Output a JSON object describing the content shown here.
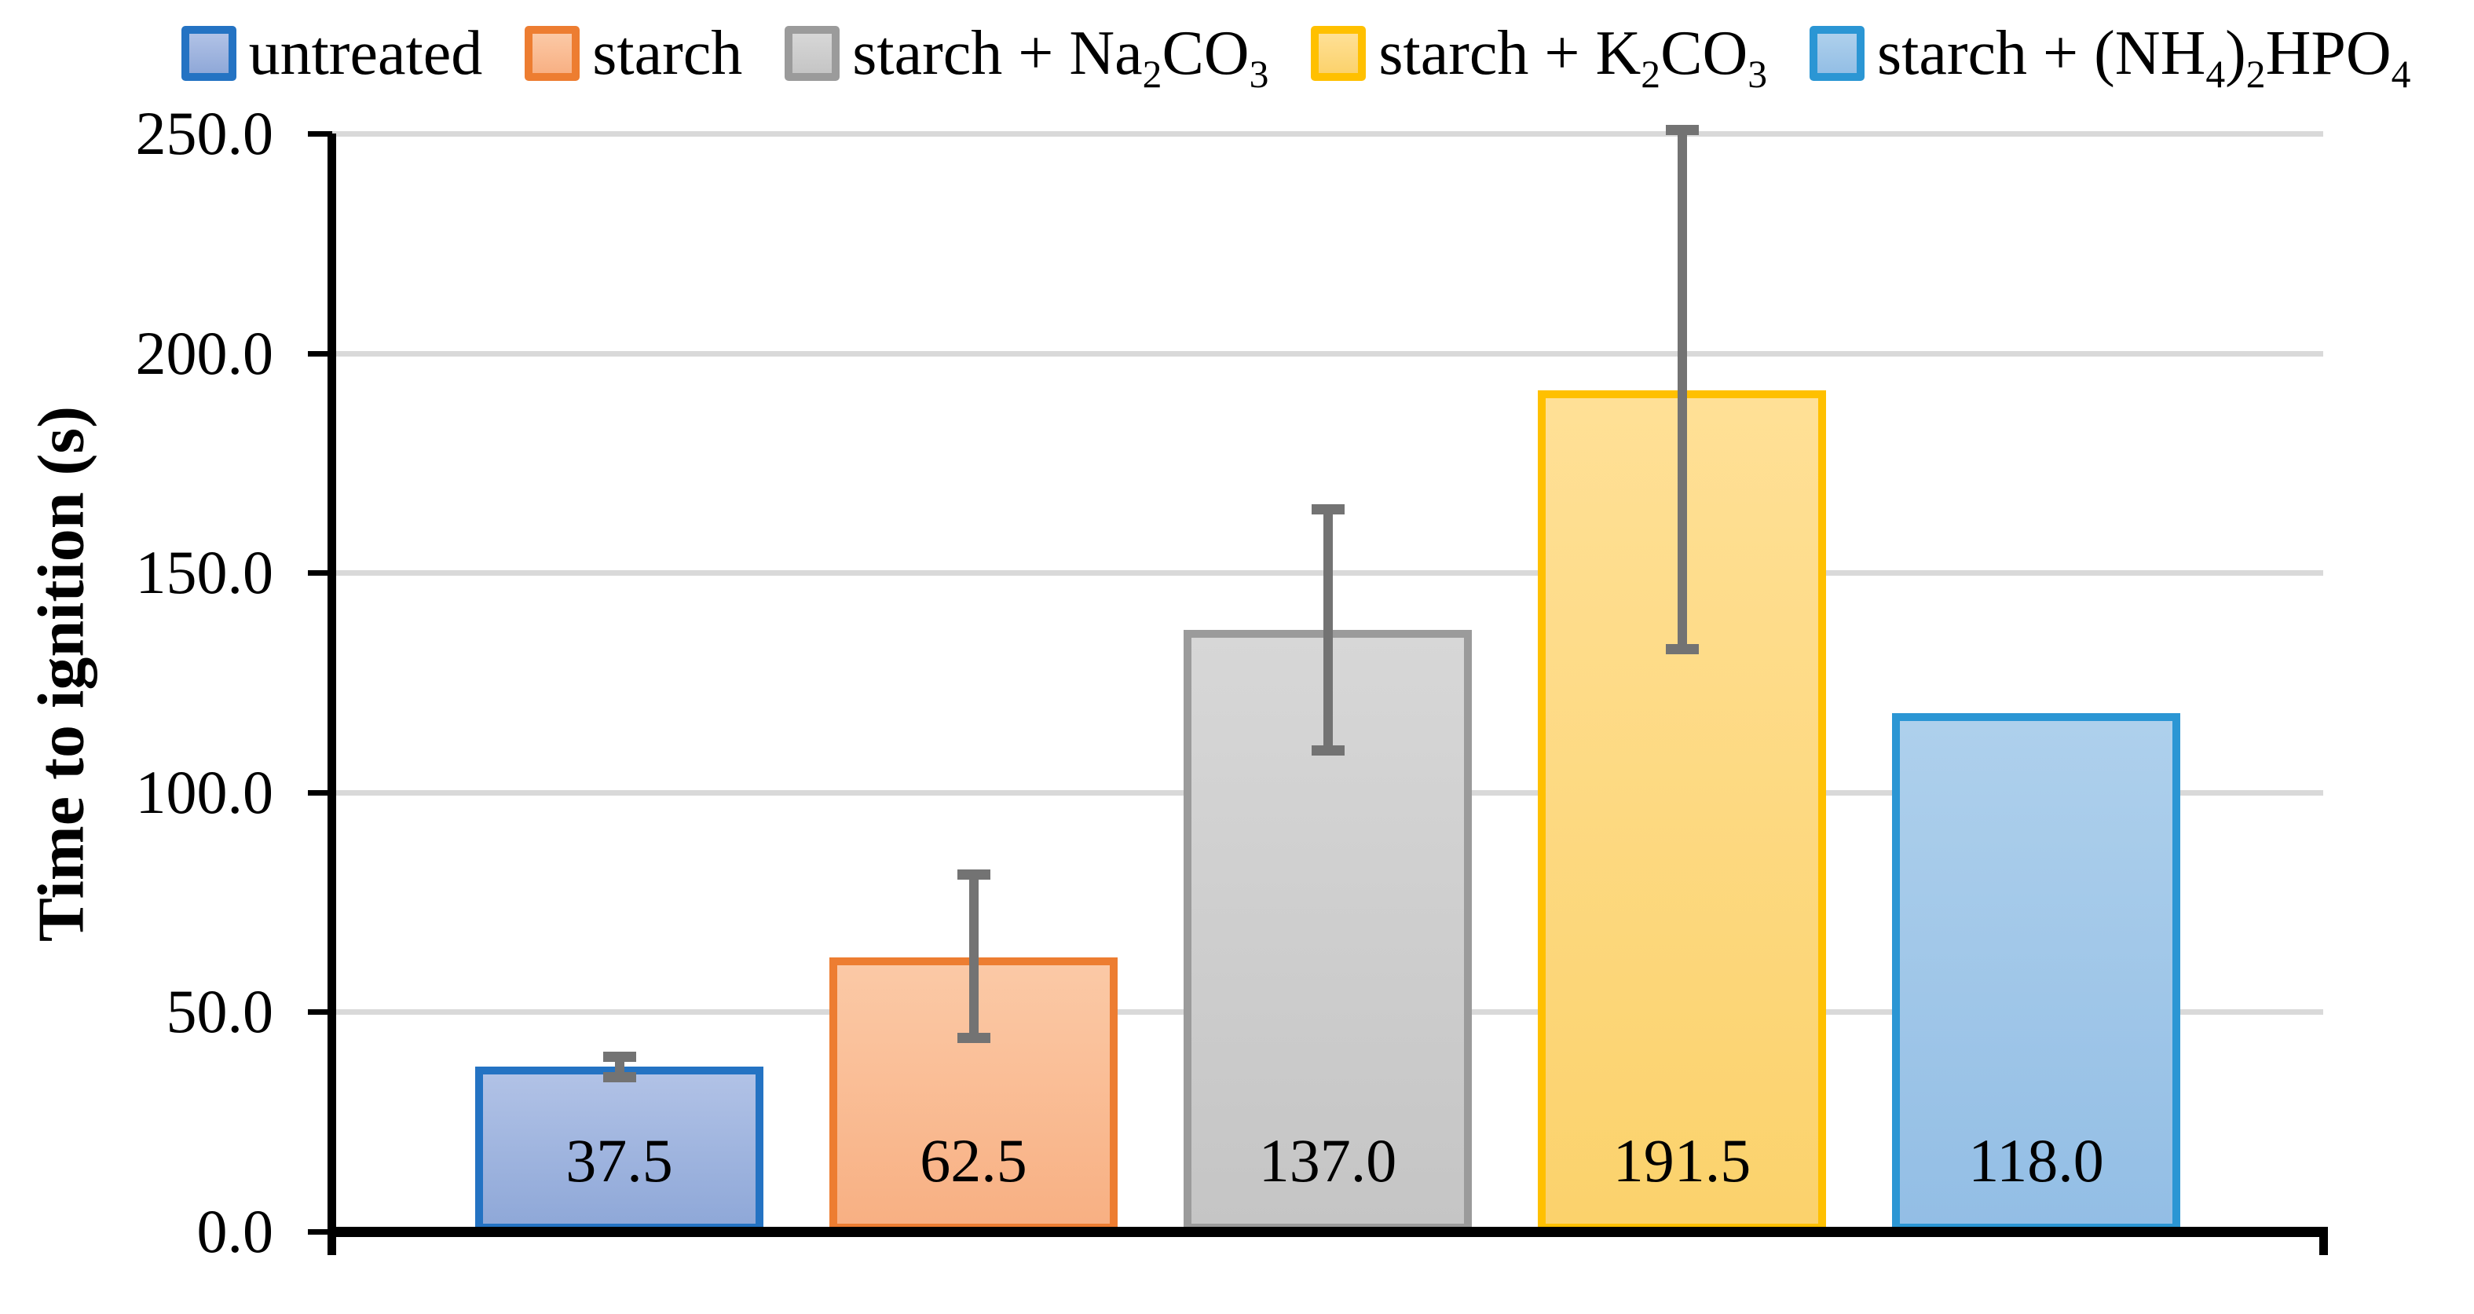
{
  "chart_data": {
    "type": "bar",
    "title": "",
    "xlabel": "",
    "ylabel": "Time to ignition (s)",
    "ylim": [
      0,
      250
    ],
    "ytick_step": 50,
    "yticks": [
      {
        "value": 0,
        "label": "0.0"
      },
      {
        "value": 50,
        "label": "50.0"
      },
      {
        "value": 100,
        "label": "100.0"
      },
      {
        "value": 150,
        "label": "150.0"
      },
      {
        "value": 200,
        "label": "200.0"
      },
      {
        "value": 250,
        "label": "250.0"
      }
    ],
    "grid": true,
    "gridline_color": "#d9d9d9",
    "axis_color": "#000000",
    "error_bar_color": "#737373",
    "legend_position": "top",
    "categories": [
      "untreated",
      "starch",
      "starch + Na2CO3",
      "starch + K2CO3",
      "starch + (NH4)2HPO4"
    ],
    "values": [
      37.5,
      62.5,
      137.0,
      191.5,
      118.0
    ],
    "bars": [
      {
        "category": "untreated",
        "value": 37.5,
        "value_label": "37.5",
        "label_segments": [
          {
            "t": "untreated"
          }
        ],
        "border_color": "#2473c3",
        "fill_top": "#b1c2e6",
        "fill_bottom": "#8fa8d8",
        "error_low": 35.5,
        "error_high": 39.3
      },
      {
        "category": "starch",
        "value": 62.5,
        "value_label": "62.5",
        "label_segments": [
          {
            "t": "starch"
          }
        ],
        "border_color": "#ed7d31",
        "fill_top": "#fbc9a6",
        "fill_bottom": "#f8b083",
        "error_low": 44.5,
        "error_high": 80.8
      },
      {
        "category": "starch + Na2CO3",
        "value": 137.0,
        "value_label": "137.0",
        "label_segments": [
          {
            "t": "starch + Na"
          },
          {
            "t": "2",
            "sub": true
          },
          {
            "t": "CO"
          },
          {
            "t": "3",
            "sub": true
          }
        ],
        "border_color": "#9b9b9b",
        "fill_top": "#d7d7d7",
        "fill_bottom": "#c5c5c5",
        "error_low": 110.0,
        "error_high": 164.0
      },
      {
        "category": "starch + K2CO3",
        "value": 191.5,
        "value_label": "191.5",
        "label_segments": [
          {
            "t": "starch + K"
          },
          {
            "t": "2",
            "sub": true
          },
          {
            "t": "CO"
          },
          {
            "t": "3",
            "sub": true
          }
        ],
        "border_color": "#ffc000",
        "fill_top": "#ffe096",
        "fill_bottom": "#fbd26c",
        "error_low": 133.0,
        "error_high": 250.3
      },
      {
        "category": "starch + (NH4)2HPO4",
        "value": 118.0,
        "value_label": "118.0",
        "label_segments": [
          {
            "t": "starch + (NH"
          },
          {
            "t": "4",
            "sub": true
          },
          {
            "t": ")"
          },
          {
            "t": "2",
            "sub": true
          },
          {
            "t": "HPO"
          },
          {
            "t": "4",
            "sub": true
          }
        ],
        "border_color": "#2b96d4",
        "fill_top": "#aed0ec",
        "fill_bottom": "#93bee5",
        "error_low": null,
        "error_high": null
      }
    ]
  }
}
